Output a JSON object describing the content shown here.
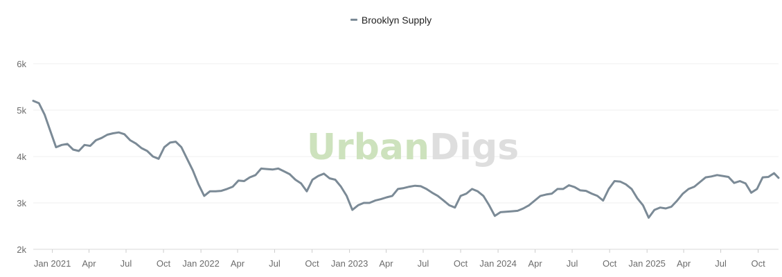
{
  "legend": {
    "label": "Brooklyn Supply",
    "color": "#7b8a96"
  },
  "watermark": {
    "part1": "Urban",
    "part2": "Digs",
    "color1": "#cde2bd",
    "color2": "#dedede"
  },
  "chart_data": {
    "type": "line",
    "title": "",
    "xlabel": "",
    "ylabel": "",
    "x_range": [
      "2020-11-15",
      "2025-11-20"
    ],
    "ylim": [
      2000,
      6000
    ],
    "grid": true,
    "legend_position": "top-center",
    "y_ticks": [
      {
        "value": 2000,
        "label": "2k"
      },
      {
        "value": 3000,
        "label": "3k"
      },
      {
        "value": 4000,
        "label": "4k"
      },
      {
        "value": 5000,
        "label": "5k"
      },
      {
        "value": 6000,
        "label": "6k"
      }
    ],
    "x_ticks": [
      {
        "date": "2021-01-01",
        "label": "Jan 2021"
      },
      {
        "date": "2021-04-01",
        "label": "Apr"
      },
      {
        "date": "2021-07-01",
        "label": "Jul"
      },
      {
        "date": "2021-10-01",
        "label": "Oct"
      },
      {
        "date": "2022-01-01",
        "label": "Jan 2022"
      },
      {
        "date": "2022-04-01",
        "label": "Apr"
      },
      {
        "date": "2022-07-01",
        "label": "Jul"
      },
      {
        "date": "2022-10-01",
        "label": "Oct"
      },
      {
        "date": "2023-01-01",
        "label": "Jan 2023"
      },
      {
        "date": "2023-04-01",
        "label": "Apr"
      },
      {
        "date": "2023-07-01",
        "label": "Jul"
      },
      {
        "date": "2023-10-01",
        "label": "Oct"
      },
      {
        "date": "2024-01-01",
        "label": "Jan 2024"
      },
      {
        "date": "2024-04-01",
        "label": "Apr"
      },
      {
        "date": "2024-07-01",
        "label": "Jul"
      },
      {
        "date": "2024-10-01",
        "label": "Oct"
      },
      {
        "date": "2025-01-01",
        "label": "Jan 2025"
      },
      {
        "date": "2025-04-01",
        "label": "Apr"
      },
      {
        "date": "2025-07-01",
        "label": "Jul"
      },
      {
        "date": "2025-10-01",
        "label": "Oct"
      }
    ],
    "series": [
      {
        "name": "Brooklyn Supply",
        "color": "#7b8a96",
        "points": [
          [
            "2020-11-15",
            5200
          ],
          [
            "2020-11-29",
            5150
          ],
          [
            "2020-12-13",
            4900
          ],
          [
            "2020-12-27",
            4550
          ],
          [
            "2021-01-10",
            4200
          ],
          [
            "2021-01-24",
            4250
          ],
          [
            "2021-02-07",
            4270
          ],
          [
            "2021-02-21",
            4150
          ],
          [
            "2021-03-07",
            4120
          ],
          [
            "2021-03-21",
            4250
          ],
          [
            "2021-04-04",
            4230
          ],
          [
            "2021-04-18",
            4350
          ],
          [
            "2021-05-02",
            4400
          ],
          [
            "2021-05-16",
            4470
          ],
          [
            "2021-05-30",
            4500
          ],
          [
            "2021-06-13",
            4520
          ],
          [
            "2021-06-27",
            4480
          ],
          [
            "2021-07-11",
            4350
          ],
          [
            "2021-07-25",
            4280
          ],
          [
            "2021-08-08",
            4180
          ],
          [
            "2021-08-22",
            4120
          ],
          [
            "2021-09-05",
            4000
          ],
          [
            "2021-09-19",
            3950
          ],
          [
            "2021-10-03",
            4200
          ],
          [
            "2021-10-17",
            4300
          ],
          [
            "2021-10-31",
            4320
          ],
          [
            "2021-11-14",
            4200
          ],
          [
            "2021-11-28",
            3950
          ],
          [
            "2021-12-12",
            3700
          ],
          [
            "2021-12-26",
            3400
          ],
          [
            "2022-01-09",
            3150
          ],
          [
            "2022-01-23",
            3250
          ],
          [
            "2022-02-06",
            3250
          ],
          [
            "2022-02-20",
            3260
          ],
          [
            "2022-03-06",
            3300
          ],
          [
            "2022-03-20",
            3350
          ],
          [
            "2022-04-03",
            3480
          ],
          [
            "2022-04-17",
            3470
          ],
          [
            "2022-05-01",
            3550
          ],
          [
            "2022-05-15",
            3600
          ],
          [
            "2022-05-29",
            3740
          ],
          [
            "2022-06-12",
            3730
          ],
          [
            "2022-06-26",
            3720
          ],
          [
            "2022-07-10",
            3740
          ],
          [
            "2022-07-24",
            3680
          ],
          [
            "2022-08-07",
            3620
          ],
          [
            "2022-08-21",
            3500
          ],
          [
            "2022-09-04",
            3420
          ],
          [
            "2022-09-18",
            3250
          ],
          [
            "2022-10-02",
            3500
          ],
          [
            "2022-10-16",
            3580
          ],
          [
            "2022-10-30",
            3630
          ],
          [
            "2022-11-13",
            3530
          ],
          [
            "2022-11-27",
            3500
          ],
          [
            "2022-12-11",
            3350
          ],
          [
            "2022-12-25",
            3150
          ],
          [
            "2023-01-08",
            2850
          ],
          [
            "2023-01-22",
            2950
          ],
          [
            "2023-02-05",
            3000
          ],
          [
            "2023-02-19",
            3000
          ],
          [
            "2023-03-05",
            3050
          ],
          [
            "2023-03-19",
            3080
          ],
          [
            "2023-04-02",
            3120
          ],
          [
            "2023-04-16",
            3150
          ],
          [
            "2023-04-30",
            3300
          ],
          [
            "2023-05-14",
            3320
          ],
          [
            "2023-05-28",
            3350
          ],
          [
            "2023-06-11",
            3370
          ],
          [
            "2023-06-25",
            3360
          ],
          [
            "2023-07-09",
            3300
          ],
          [
            "2023-07-23",
            3220
          ],
          [
            "2023-08-06",
            3150
          ],
          [
            "2023-08-20",
            3050
          ],
          [
            "2023-09-03",
            2950
          ],
          [
            "2023-09-17",
            2900
          ],
          [
            "2023-10-01",
            3150
          ],
          [
            "2023-10-15",
            3200
          ],
          [
            "2023-10-29",
            3300
          ],
          [
            "2023-11-12",
            3250
          ],
          [
            "2023-11-26",
            3150
          ],
          [
            "2023-12-10",
            2950
          ],
          [
            "2023-12-24",
            2720
          ],
          [
            "2024-01-07",
            2800
          ],
          [
            "2024-01-21",
            2810
          ],
          [
            "2024-02-04",
            2820
          ],
          [
            "2024-02-18",
            2830
          ],
          [
            "2024-03-03",
            2880
          ],
          [
            "2024-03-17",
            2950
          ],
          [
            "2024-03-31",
            3050
          ],
          [
            "2024-04-14",
            3150
          ],
          [
            "2024-04-28",
            3180
          ],
          [
            "2024-05-12",
            3200
          ],
          [
            "2024-05-26",
            3300
          ],
          [
            "2024-06-09",
            3300
          ],
          [
            "2024-06-23",
            3380
          ],
          [
            "2024-07-07",
            3340
          ],
          [
            "2024-07-21",
            3270
          ],
          [
            "2024-08-04",
            3260
          ],
          [
            "2024-08-18",
            3200
          ],
          [
            "2024-09-01",
            3150
          ],
          [
            "2024-09-15",
            3050
          ],
          [
            "2024-09-29",
            3300
          ],
          [
            "2024-10-13",
            3470
          ],
          [
            "2024-10-27",
            3460
          ],
          [
            "2024-11-10",
            3400
          ],
          [
            "2024-11-24",
            3300
          ],
          [
            "2024-12-08",
            3100
          ],
          [
            "2024-12-22",
            2950
          ],
          [
            "2025-01-05",
            2680
          ],
          [
            "2025-01-19",
            2850
          ],
          [
            "2025-02-02",
            2900
          ],
          [
            "2025-02-16",
            2880
          ],
          [
            "2025-03-02",
            2920
          ],
          [
            "2025-03-16",
            3050
          ],
          [
            "2025-03-30",
            3200
          ],
          [
            "2025-04-13",
            3300
          ],
          [
            "2025-04-27",
            3350
          ],
          [
            "2025-05-11",
            3450
          ],
          [
            "2025-05-25",
            3550
          ],
          [
            "2025-06-08",
            3570
          ],
          [
            "2025-06-22",
            3600
          ],
          [
            "2025-07-06",
            3580
          ],
          [
            "2025-07-20",
            3560
          ],
          [
            "2025-08-03",
            3430
          ],
          [
            "2025-08-17",
            3470
          ],
          [
            "2025-08-31",
            3420
          ],
          [
            "2025-09-14",
            3220
          ],
          [
            "2025-09-28",
            3300
          ],
          [
            "2025-10-12",
            3550
          ],
          [
            "2025-10-26",
            3560
          ],
          [
            "2025-11-09",
            3640
          ],
          [
            "2025-11-20",
            3540
          ]
        ]
      }
    ]
  }
}
